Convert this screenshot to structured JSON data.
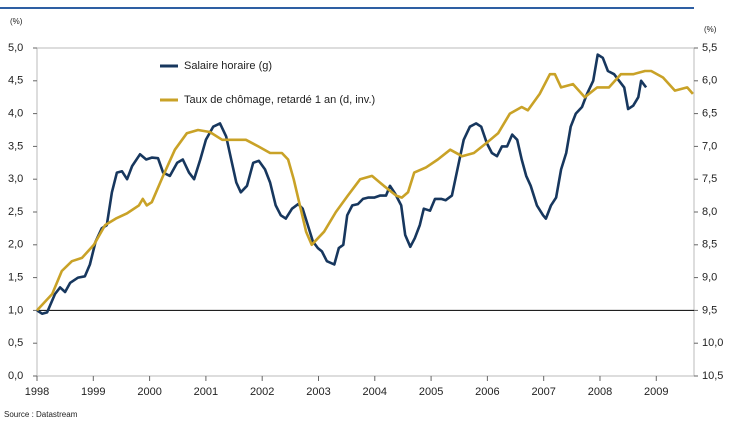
{
  "chart_data": {
    "type": "line",
    "y_unit": "(%)",
    "y2_unit": "(%)",
    "source": "Source : Datastream",
    "xlim": [
      1998,
      2009.67
    ],
    "xticks": [
      1998,
      1999,
      2000,
      2001,
      2002,
      2003,
      2004,
      2005,
      2006,
      2007,
      2008,
      2009
    ],
    "ylim": [
      0,
      5
    ],
    "yticks": [
      {
        "value": 0,
        "label": "0,0"
      },
      {
        "value": 0.5,
        "label": "0,5"
      },
      {
        "value": 1,
        "label": "1,0"
      },
      {
        "value": 1.5,
        "label": "1,5"
      },
      {
        "value": 2,
        "label": "2,0"
      },
      {
        "value": 2.5,
        "label": "2,5"
      },
      {
        "value": 3,
        "label": "3,0"
      },
      {
        "value": 3.5,
        "label": "3,5"
      },
      {
        "value": 4,
        "label": "4,0"
      },
      {
        "value": 4.5,
        "label": "4,5"
      },
      {
        "value": 5,
        "label": "5,0"
      }
    ],
    "y2lim": [
      10.5,
      5.5
    ],
    "y2ticks": [
      {
        "value": 5.5,
        "label": "5,5"
      },
      {
        "value": 6,
        "label": "6,0"
      },
      {
        "value": 6.5,
        "label": "6,5"
      },
      {
        "value": 7,
        "label": "7,0"
      },
      {
        "value": 7.5,
        "label": "7,5"
      },
      {
        "value": 8,
        "label": "8,0"
      },
      {
        "value": 8.5,
        "label": "8,5"
      },
      {
        "value": 9,
        "label": "9,0"
      },
      {
        "value": 9.5,
        "label": "9,5"
      },
      {
        "value": 10,
        "label": "10,0"
      },
      {
        "value": 10.5,
        "label": "10,5"
      }
    ],
    "reference_line": 1,
    "series": [
      {
        "name": "Salaire horaire (g)",
        "color": "#17375e",
        "axis": "y",
        "x": [
          1998.0,
          1998.09,
          1998.18,
          1998.32,
          1998.41,
          1998.5,
          1998.59,
          1998.73,
          1998.85,
          1998.94,
          1999.04,
          1999.15,
          1999.24,
          1999.33,
          1999.42,
          1999.51,
          1999.6,
          1999.69,
          1999.83,
          1999.94,
          2000.04,
          2000.15,
          2000.24,
          2000.36,
          2000.49,
          2000.59,
          2000.7,
          2000.79,
          2000.9,
          2001.0,
          2001.13,
          2001.25,
          2001.36,
          2001.45,
          2001.54,
          2001.62,
          2001.73,
          2001.84,
          2001.94,
          2002.05,
          2002.14,
          2002.24,
          2002.33,
          2002.42,
          2002.53,
          2002.64,
          2002.72,
          2002.81,
          2002.9,
          2002.99,
          2003.06,
          2003.15,
          2003.28,
          2003.36,
          2003.44,
          2003.51,
          2003.6,
          2003.7,
          2003.79,
          2003.88,
          2003.99,
          2004.09,
          2004.2,
          2004.27,
          2004.36,
          2004.47,
          2004.54,
          2004.63,
          2004.71,
          2004.8,
          2004.87,
          2004.98,
          2005.07,
          2005.18,
          2005.26,
          2005.37,
          2005.48,
          2005.58,
          2005.69,
          2005.8,
          2005.89,
          2005.99,
          2006.08,
          2006.17,
          2006.26,
          2006.35,
          2006.44,
          2006.53,
          2006.61,
          2006.69,
          2006.77,
          2006.88,
          2006.99,
          2007.04,
          2007.13,
          2007.22,
          2007.31,
          2007.4,
          2007.48,
          2007.57,
          2007.68,
          2007.77,
          2007.88,
          2007.96,
          2008.05,
          2008.14,
          2008.25,
          2008.34,
          2008.43,
          2008.5,
          2008.59,
          2008.68,
          2008.73,
          2008.82
        ],
        "values": [
          1.0,
          0.95,
          0.97,
          1.25,
          1.35,
          1.28,
          1.42,
          1.5,
          1.52,
          1.7,
          2.05,
          2.25,
          2.3,
          2.8,
          3.1,
          3.12,
          3.0,
          3.2,
          3.38,
          3.3,
          3.33,
          3.32,
          3.1,
          3.05,
          3.25,
          3.3,
          3.1,
          3.0,
          3.3,
          3.6,
          3.8,
          3.85,
          3.65,
          3.3,
          2.95,
          2.8,
          2.9,
          3.25,
          3.28,
          3.15,
          2.95,
          2.6,
          2.45,
          2.4,
          2.55,
          2.62,
          2.55,
          2.3,
          2.05,
          1.95,
          1.9,
          1.75,
          1.7,
          1.95,
          2.0,
          2.45,
          2.6,
          2.62,
          2.7,
          2.72,
          2.72,
          2.75,
          2.75,
          2.9,
          2.78,
          2.6,
          2.15,
          1.97,
          2.1,
          2.3,
          2.55,
          2.52,
          2.7,
          2.7,
          2.68,
          2.75,
          3.2,
          3.6,
          3.8,
          3.85,
          3.8,
          3.55,
          3.4,
          3.35,
          3.5,
          3.5,
          3.68,
          3.6,
          3.3,
          3.05,
          2.9,
          2.6,
          2.45,
          2.4,
          2.6,
          2.72,
          3.15,
          3.4,
          3.8,
          4.0,
          4.1,
          4.3,
          4.5,
          4.9,
          4.85,
          4.65,
          4.6,
          4.5,
          4.4,
          4.07,
          4.12,
          4.25,
          4.5,
          4.4
        ]
      },
      {
        "name": "Taux de chômage, retardé 1 an (d, inv.)",
        "color": "#c9a227",
        "axis": "y2",
        "x": [
          1998.0,
          1998.27,
          1998.44,
          1998.62,
          1998.8,
          1999.01,
          1999.21,
          1999.4,
          1999.6,
          1999.81,
          1999.88,
          1999.95,
          2000.04,
          2000.24,
          2000.45,
          2000.66,
          2000.86,
          2001.07,
          2001.29,
          2001.5,
          2001.71,
          2001.93,
          2002.14,
          2002.35,
          2002.46,
          2002.56,
          2002.67,
          2002.78,
          2002.88,
          2003.1,
          2003.31,
          2003.52,
          2003.74,
          2003.95,
          2004.16,
          2004.38,
          2004.48,
          2004.59,
          2004.7,
          2004.91,
          2005.12,
          2005.34,
          2005.55,
          2005.76,
          2005.98,
          2006.19,
          2006.4,
          2006.61,
          2006.72,
          2006.93,
          2007.11,
          2007.2,
          2007.31,
          2007.52,
          2007.73,
          2007.95,
          2008.16,
          2008.37,
          2008.59,
          2008.8,
          2008.91,
          2009.12,
          2009.33,
          2009.55,
          2009.65
        ],
        "values": [
          9.5,
          9.25,
          8.9,
          8.75,
          8.7,
          8.5,
          8.2,
          8.1,
          8.02,
          7.9,
          7.8,
          7.9,
          7.85,
          7.45,
          7.05,
          6.8,
          6.75,
          6.78,
          6.9,
          6.9,
          6.9,
          7.0,
          7.1,
          7.1,
          7.2,
          7.5,
          7.9,
          8.3,
          8.5,
          8.3,
          8.0,
          7.75,
          7.5,
          7.45,
          7.6,
          7.75,
          7.78,
          7.7,
          7.4,
          7.32,
          7.2,
          7.05,
          7.15,
          7.1,
          6.95,
          6.8,
          6.5,
          6.4,
          6.45,
          6.2,
          5.9,
          5.9,
          6.1,
          6.05,
          6.25,
          6.1,
          6.1,
          5.9,
          5.9,
          5.85,
          5.85,
          5.95,
          6.15,
          6.1,
          6.2
        ]
      }
    ]
  }
}
